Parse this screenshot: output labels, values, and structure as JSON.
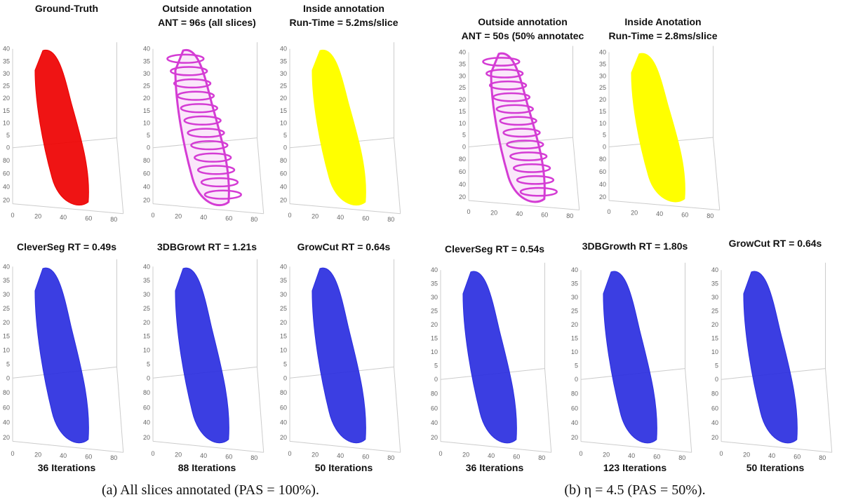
{
  "figure_a": {
    "top": [
      {
        "title": [
          "Ground-Truth"
        ]
      },
      {
        "title": [
          "Outside annotation",
          "ANT = 96s (all slices)"
        ]
      },
      {
        "title": [
          "Inside annotation",
          "Run-Time = 5.2ms/slice"
        ]
      }
    ],
    "bottom": [
      {
        "title": "CleverSeg RT = 0.49s",
        "footer": "36 Iterations"
      },
      {
        "title": "3DBGrowt RT = 1.21s",
        "footer": "88 Iterations"
      },
      {
        "title": "GrowCut RT = 0.64s",
        "footer": "50 Iterations"
      }
    ],
    "caption": "(a) All slices annotated (PAS = 100%)."
  },
  "figure_b": {
    "top": [
      {
        "title": [
          "Outside annotation",
          "ANT = 50s (50% annotatec"
        ]
      },
      {
        "title": [
          "Inside Anotation",
          "Run-Time = 2.8ms/slice"
        ]
      }
    ],
    "bottom": [
      {
        "title": "CleverSeg  RT = 0.54s",
        "footer": "36 Iterations"
      },
      {
        "title": "3DBGrowth RT = 1.80s",
        "footer": "123 Iterations"
      },
      {
        "title": "GrowCut RT = 0.64s",
        "footer": "50 Iterations"
      }
    ],
    "caption": "(b) η = 4.5 (PAS = 50%)."
  },
  "axes": {
    "z_ticks": [
      "0",
      "5",
      "10",
      "15",
      "20",
      "25",
      "30",
      "35",
      "40"
    ],
    "y_ticks": [
      "20",
      "40",
      "60",
      "80"
    ],
    "x_ticks": [
      "0",
      "20",
      "40",
      "60",
      "80"
    ]
  }
}
